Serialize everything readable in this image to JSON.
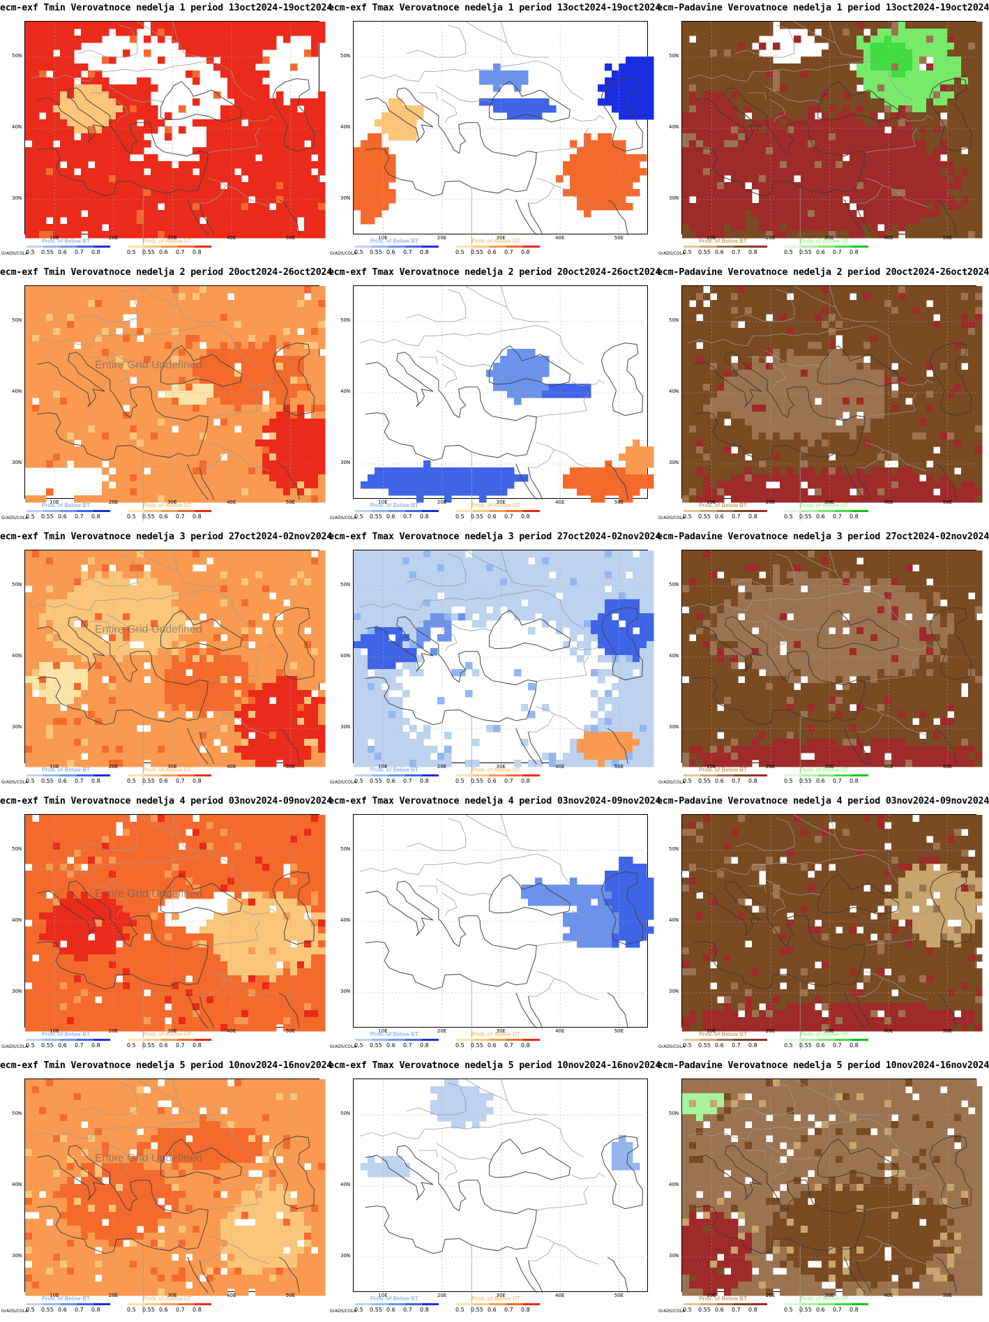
{
  "software_label": "GrADS/COLA",
  "lat_labels": [
    "50N",
    "40N",
    "30N"
  ],
  "lon_labels": [
    "10E",
    "20E",
    "30E",
    "40E",
    "50E"
  ],
  "legend_ticks": [
    "0.5",
    "0.55",
    "0.6",
    "0.7",
    "0.8"
  ],
  "watermark": "Entire Grid Undefined",
  "legends": {
    "Tmin": [
      {
        "label": "Prob. of Below BT",
        "colors": [
          "#bcd2ee",
          "#93b6f0",
          "#6b93ec",
          "#3f64e6",
          "#1a2ee0"
        ]
      },
      {
        "label": "Prob. of Above UT",
        "colors": [
          "#fce4a8",
          "#fbc57a",
          "#f99a50",
          "#f46a2c",
          "#ea2a1a"
        ]
      }
    ],
    "Tmax": [
      {
        "label": "Prob. of Below BT",
        "colors": [
          "#bcd2ee",
          "#93b6f0",
          "#6b93ec",
          "#3f64e6",
          "#1a2ee0"
        ]
      },
      {
        "label": "Prob. of Above UT",
        "colors": [
          "#fce4a8",
          "#fbc57a",
          "#f99a50",
          "#f46a2c",
          "#ea2a1a"
        ]
      }
    ],
    "Padavine": [
      {
        "label": "Prob. of Below BT",
        "colors": [
          "#e0c690",
          "#c8a46e",
          "#9c7350",
          "#7a4a22",
          "#9e2a2a"
        ]
      },
      {
        "label": "Prob. of Above UT",
        "colors": [
          "#d8fcd0",
          "#a8f49a",
          "#78ea6a",
          "#40dc40",
          "#10c810"
        ]
      }
    ]
  },
  "columns": [
    {
      "key": "Tmin",
      "prefix": "ecm-exf Tmin Verovatnoce nedelja"
    },
    {
      "key": "Tmax",
      "prefix": "ecm-exf Tmax Verovatnoce nedelja"
    },
    {
      "key": "Padavine",
      "prefix": "ecm-Padavine Verovatnoce nedelja"
    }
  ],
  "weeks": [
    {
      "num": "1",
      "period": "13oct2024-19oct2024"
    },
    {
      "num": "2",
      "period": "20oct2024-26oct2024"
    },
    {
      "num": "3",
      "period": "27oct2024-02nov2024"
    },
    {
      "num": "4",
      "period": "03nov2024-09nov2024"
    },
    {
      "num": "5",
      "period": "10nov2024-16nov2024"
    }
  ],
  "panels": [
    {
      "title": "ecm-exf Tmin Verovatnoce nedelja 1 period 13oct2024-19oct2024",
      "var": "Tmin",
      "watermark": false
    },
    {
      "title": "ecm-exf Tmax Verovatnoce nedelja 1 period 13oct2024-19oct2024",
      "var": "Tmax",
      "watermark": false
    },
    {
      "title": "ecm-Padavine Verovatnoce nedelja 1 period 13oct2024-19oct2024",
      "var": "Padavine",
      "watermark": false
    },
    {
      "title": "ecm-exf Tmin Verovatnoce nedelja 2 period 20oct2024-26oct2024",
      "var": "Tmin",
      "watermark": true
    },
    {
      "title": "ecm-exf Tmax Verovatnoce nedelja 2 period 20oct2024-26oct2024",
      "var": "Tmax",
      "watermark": false
    },
    {
      "title": "ecm-Padavine Verovatnoce nedelja 2 period 20oct2024-26oct2024",
      "var": "Padavine",
      "watermark": false
    },
    {
      "title": "ecm-exf Tmin Verovatnoce nedelja 3 period 27oct2024-02nov2024",
      "var": "Tmin",
      "watermark": true
    },
    {
      "title": "ecm-exf Tmax Verovatnoce nedelja 3 period 27oct2024-02nov2024",
      "var": "Tmax",
      "watermark": false
    },
    {
      "title": "ecm-Padavine Verovatnoce nedelja 3 period 27oct2024-02nov2024",
      "var": "Padavine",
      "watermark": false
    },
    {
      "title": "ecm-exf Tmin Verovatnoce nedelja 4 period 03nov2024-09nov2024",
      "var": "Tmin",
      "watermark": true
    },
    {
      "title": "ecm-exf Tmax Verovatnoce nedelja 4 period 03nov2024-09nov2024",
      "var": "Tmax",
      "watermark": false
    },
    {
      "title": "ecm-Padavine Verovatnoce nedelja 4 period 03nov2024-09nov2024",
      "var": "Padavine",
      "watermark": false
    },
    {
      "title": "ecm-exf Tmin Verovatnoce nedelja 5 period 10nov2024-16nov2024",
      "var": "Tmin",
      "watermark": true
    },
    {
      "title": "ecm-exf Tmax Verovatnoce nedelja 5 period 10nov2024-16nov2024",
      "var": "Tmax",
      "watermark": false
    },
    {
      "title": "ecm-Padavine Verovatnoce nedelja 5 period 10nov2024-16nov2024",
      "var": "Padavine",
      "watermark": false
    }
  ]
}
